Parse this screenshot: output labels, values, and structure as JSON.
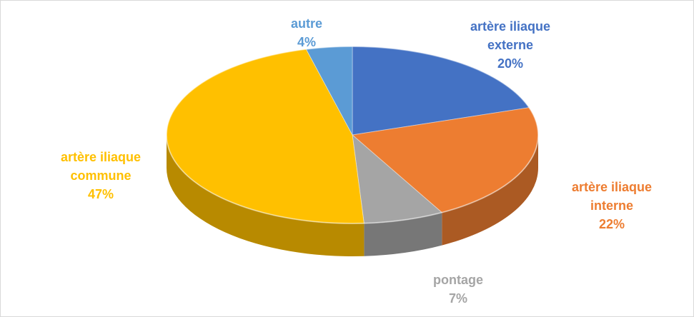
{
  "chart_data": {
    "type": "pie",
    "categories": [
      "artère iliaque externe",
      "artère iliaque interne",
      "pontage",
      "artère iliaque commune",
      "autre"
    ],
    "values": [
      20,
      22,
      7,
      47,
      4
    ],
    "value_labels": [
      "20%",
      "22%",
      "7%",
      "47%",
      "4%"
    ],
    "colors": [
      "#4472c4",
      "#ed7d31",
      "#a5a5a5",
      "#ffc000",
      "#5b9bd5"
    ]
  }
}
